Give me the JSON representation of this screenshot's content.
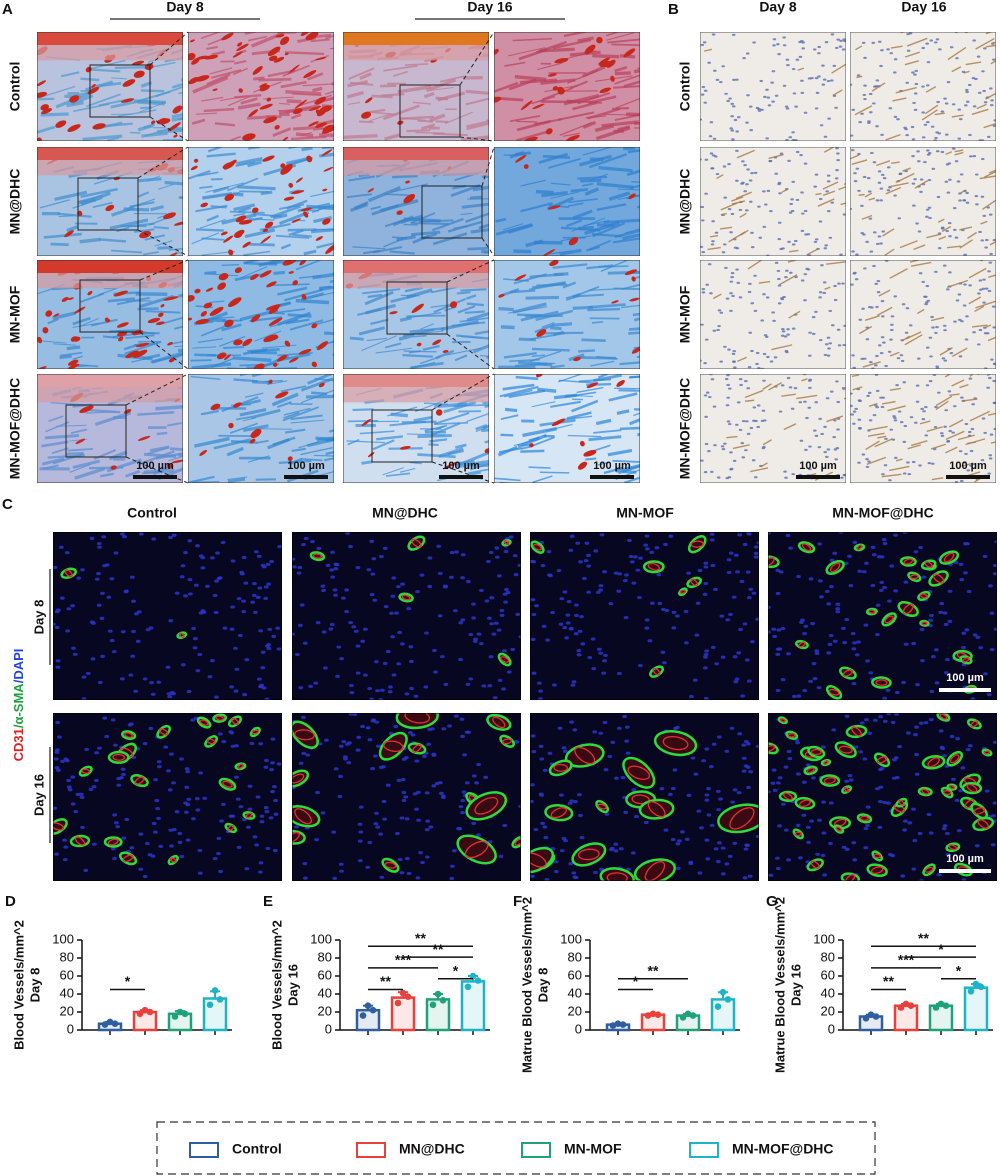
{
  "panel_a": {
    "label": "A",
    "columns": [
      "Day 8",
      "Day 16"
    ],
    "rows": [
      "Control",
      "MN@DHC",
      "MN-MOF",
      "MN-MOF@DHC"
    ],
    "scale_bar": "100 µm"
  },
  "panel_b": {
    "label": "B",
    "columns": [
      "Day 8",
      "Day 16"
    ],
    "rows": [
      "Control",
      "MN@DHC",
      "MN-MOF",
      "MN-MOF@DHC"
    ],
    "scale_bar": "100 µm"
  },
  "panel_c": {
    "label": "C",
    "columns": [
      "Control",
      "MN@DHC",
      "MN-MOF",
      "MN-MOF@DHC"
    ],
    "rows": [
      "Day 8",
      "Day 16"
    ],
    "stain": [
      {
        "text": "CD31",
        "color": "#e02020"
      },
      {
        "text": "/α-SMA",
        "color": "#1fa040"
      },
      {
        "text": "/DAPI",
        "color": "#2440e0"
      }
    ],
    "scale_bar": "100 µm"
  },
  "legend": {
    "entries": [
      {
        "name": "Control",
        "color": "#2e5e9e"
      },
      {
        "name": "MN@DHC",
        "color": "#e8413c"
      },
      {
        "name": "MN-MOF",
        "color": "#1fa27a"
      },
      {
        "name": "MN-MOF@DHC",
        "color": "#1fb3c8"
      }
    ]
  },
  "chart_data": [
    {
      "type": "bar",
      "panel": "D",
      "ylabel": [
        "Blood Vessels/mm^2",
        "Day 8"
      ],
      "categories": [
        null,
        null,
        null,
        null
      ],
      "values": [
        7,
        20,
        18,
        35
      ],
      "errors": [
        2,
        2,
        3,
        8
      ],
      "points": [
        [
          6,
          9,
          7
        ],
        [
          18,
          22,
          20
        ],
        [
          15,
          20,
          18
        ],
        [
          28,
          44,
          34
        ]
      ],
      "ylim": [
        0,
        100
      ],
      "yticks": [
        0,
        20,
        40,
        60,
        80,
        100
      ],
      "significance": [
        {
          "label": "*",
          "from": "Control",
          "to": "MN@DHC"
        }
      ]
    },
    {
      "type": "bar",
      "panel": "E",
      "ylabel": [
        "Blood Vessels/mm^2",
        "Day 16"
      ],
      "categories": [
        null,
        null,
        null,
        null
      ],
      "values": [
        22,
        36,
        34,
        54
      ],
      "errors": [
        5,
        6,
        6,
        6
      ],
      "points": [
        [
          16,
          27,
          22
        ],
        [
          30,
          41,
          37
        ],
        [
          28,
          40,
          33
        ],
        [
          48,
          60,
          55
        ]
      ],
      "ylim": [
        0,
        100
      ],
      "yticks": [
        0,
        20,
        40,
        60,
        80,
        100
      ],
      "significance": [
        {
          "label": "**",
          "from": "Control",
          "to": "MN@DHC"
        },
        {
          "label": "*",
          "from": "MN-MOF",
          "to": "MN-MOF@DHC"
        },
        {
          "label": "***",
          "from": "Control",
          "to": "MN-MOF"
        },
        {
          "label": "**",
          "from": "MN@DHC",
          "to": "MN-MOF@DHC"
        },
        {
          "label": "**",
          "from": "Control",
          "to": "MN-MOF@DHC"
        }
      ]
    },
    {
      "type": "bar",
      "panel": "F",
      "ylabel": [
        "Matrue Blood Vessels/mm^2",
        "Day 8"
      ],
      "categories": [
        null,
        null,
        null,
        null
      ],
      "values": [
        6,
        17,
        16,
        34
      ],
      "errors": [
        1,
        1,
        2,
        8
      ],
      "points": [
        [
          5,
          7,
          6
        ],
        [
          16,
          18,
          17
        ],
        [
          14,
          18,
          16
        ],
        [
          26,
          42,
          34
        ]
      ],
      "ylim": [
        0,
        100
      ],
      "yticks": [
        0,
        20,
        40,
        60,
        80,
        100
      ],
      "significance": [
        {
          "label": "*",
          "from": "Control",
          "to": "MN@DHC"
        },
        {
          "label": "**",
          "from": "Control",
          "to": "MN-MOF"
        }
      ]
    },
    {
      "type": "bar",
      "panel": "G",
      "ylabel": [
        "Matrue Blood Vessels/mm^2",
        "Day 16"
      ],
      "categories": [
        null,
        null,
        null,
        null
      ],
      "values": [
        15,
        27,
        27,
        47
      ],
      "errors": [
        2,
        2,
        2,
        4
      ],
      "points": [
        [
          13,
          17,
          15
        ],
        [
          25,
          29,
          27
        ],
        [
          25,
          29,
          27
        ],
        [
          43,
          51,
          48
        ]
      ],
      "ylim": [
        0,
        100
      ],
      "yticks": [
        0,
        20,
        40,
        60,
        80,
        100
      ],
      "significance": [
        {
          "label": "**",
          "from": "Control",
          "to": "MN@DHC"
        },
        {
          "label": "*",
          "from": "MN-MOF",
          "to": "MN-MOF@DHC"
        },
        {
          "label": "***",
          "from": "Control",
          "to": "MN-MOF"
        },
        {
          "label": "*",
          "from": "MN@DHC",
          "to": "MN-MOF@DHC"
        },
        {
          "label": "**",
          "from": "Control",
          "to": "MN-MOF@DHC"
        }
      ]
    }
  ]
}
